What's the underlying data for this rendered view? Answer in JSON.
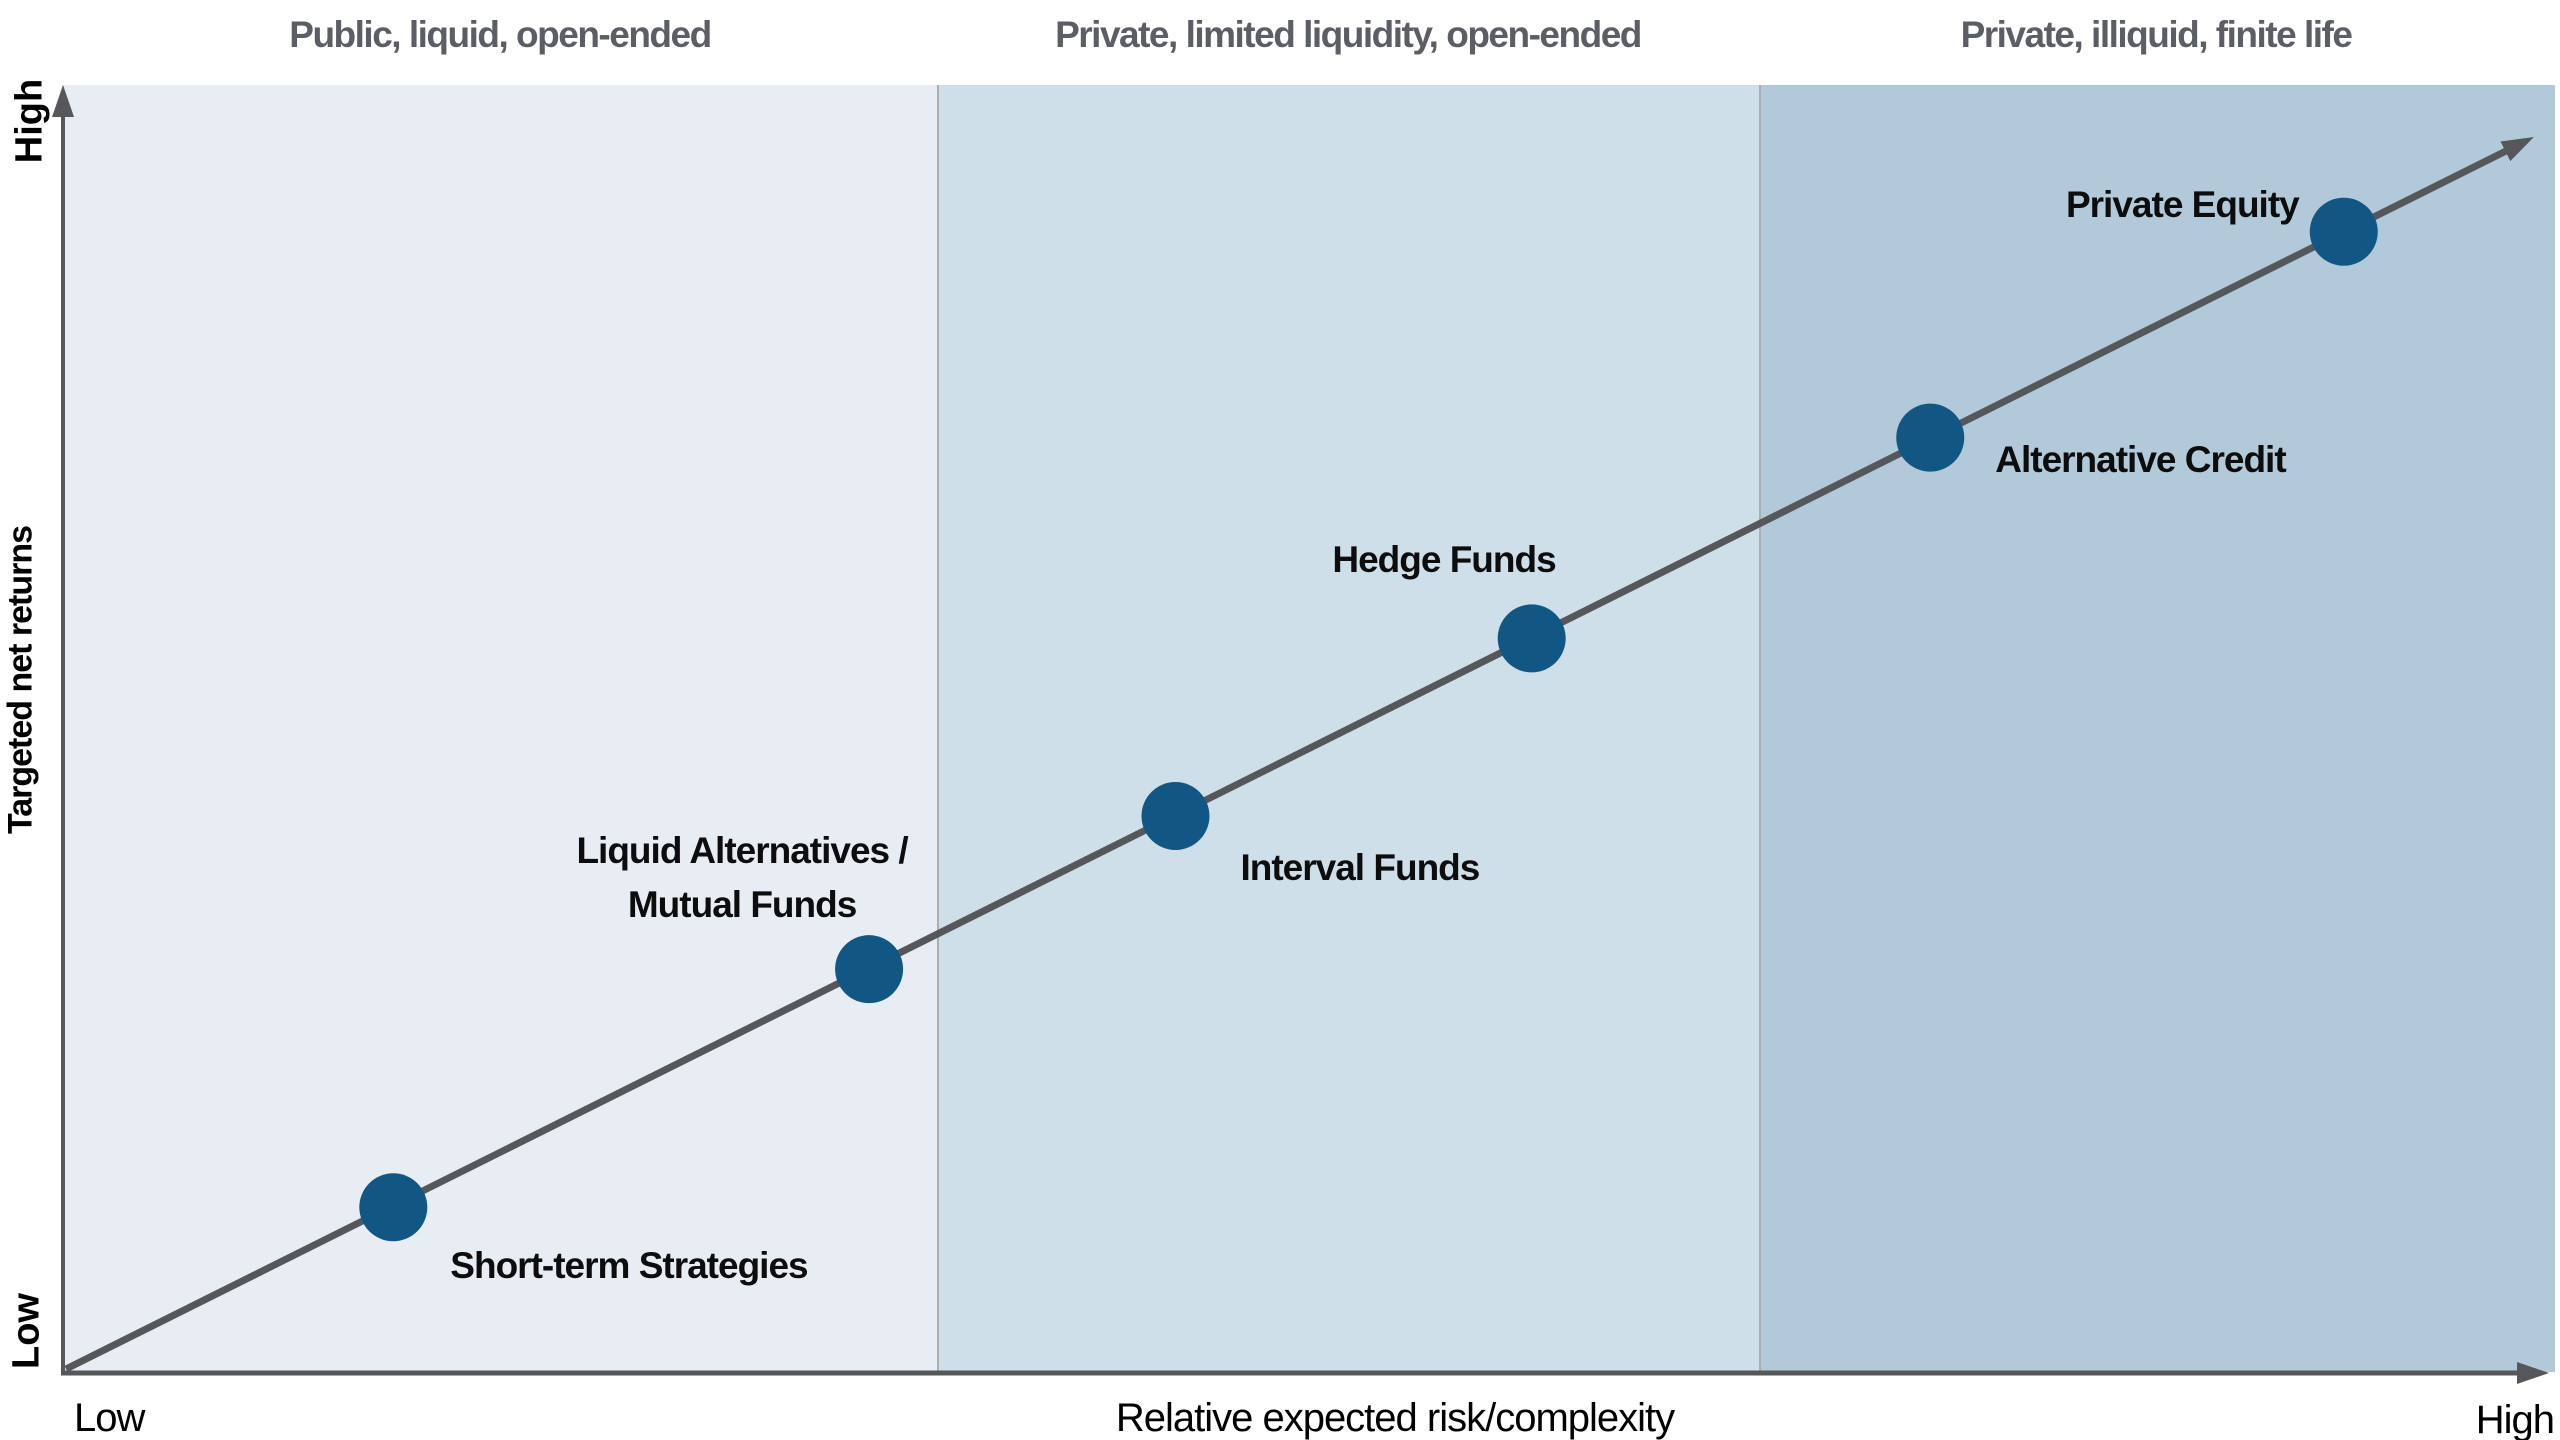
{
  "axes": {
    "y_title": "Targeted net returns",
    "y_high": "High",
    "y_low": "Low",
    "x_title": "Relative expected risk/complexity",
    "x_low": "Low",
    "x_high": "High"
  },
  "colors": {
    "zone1_fill": "#e8edf4",
    "zone2_fill": "#cfdfe9",
    "zone3_fill": "#b2c9d9",
    "zone_divider": "#a9aeb3",
    "line_gray": "#55575b",
    "dot_blue": "#125784",
    "header_gray": "#5b5e64",
    "label_black": "#0d0d0d"
  },
  "chart_data": {
    "type": "scatter",
    "title": "",
    "xlabel": "Relative expected risk/complexity",
    "ylabel": "Targeted net returns",
    "x_range_labels": [
      "Low",
      "High"
    ],
    "y_range_labels": [
      "Low",
      "High"
    ],
    "xlim": [
      0,
      100
    ],
    "ylim": [
      0,
      100
    ],
    "grid": false,
    "trend_line": {
      "style": "arrow",
      "from_pct": [
        0,
        0
      ],
      "to_pct": [
        99,
        96
      ]
    },
    "zones": [
      {
        "label": "Public, liquid, open-ended",
        "start_pct": 0,
        "end_pct": 35.1
      },
      {
        "label": "Private, limited liquidity, open-ended",
        "start_pct": 35.1,
        "end_pct": 68.1
      },
      {
        "label": "Private, illiquid, finite life",
        "start_pct": 68.1,
        "end_pct": 100
      }
    ],
    "points": [
      {
        "id": "short_term",
        "label": "Short-term Strategies",
        "risk": 13.3,
        "returns": 12.8
      },
      {
        "id": "liquid_alt",
        "label": "Liquid Alternatives /\nMutual Funds",
        "risk": 32.4,
        "returns": 31.3
      },
      {
        "id": "interval",
        "label": "Interval Funds",
        "risk": 44.7,
        "returns": 43.2
      },
      {
        "id": "hedge",
        "label": "Hedge Funds",
        "risk": 59.0,
        "returns": 57.0
      },
      {
        "id": "alt_credit",
        "label": "Alternative Credit",
        "risk": 75.0,
        "returns": 72.6
      },
      {
        "id": "pe",
        "label": "Private Equity",
        "risk": 91.6,
        "returns": 88.6
      }
    ]
  }
}
